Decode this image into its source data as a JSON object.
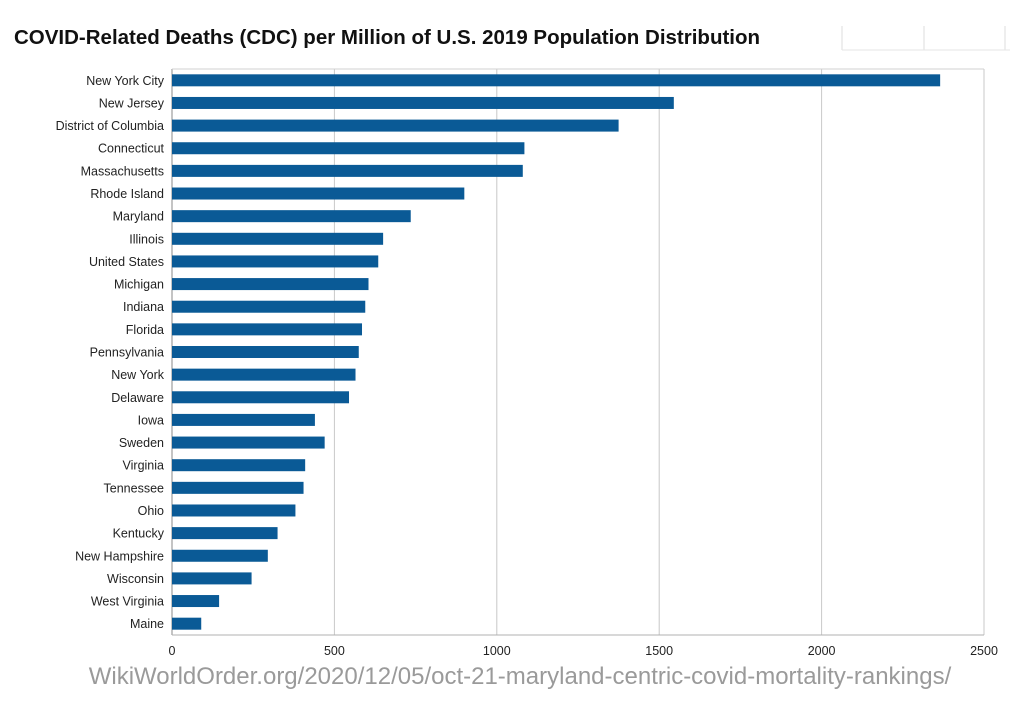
{
  "chart_data": {
    "type": "bar",
    "orientation": "horizontal",
    "title": "COVID-Related Deaths (CDC) per Million of U.S. 2019 Population Distribution",
    "categories": [
      "New York City",
      "New Jersey",
      "District of Columbia",
      "Connecticut",
      "Massachusetts",
      "Rhode Island",
      "Maryland",
      "Illinois",
      "United States",
      "Michigan",
      "Indiana",
      "Florida",
      "Pennsylvania",
      "New York",
      "Delaware",
      "Iowa",
      "Sweden",
      "Virginia",
      "Tennessee",
      "Ohio",
      "Kentucky",
      "New Hampshire",
      "Wisconsin",
      "West Virginia",
      "Maine"
    ],
    "values": [
      2365,
      1545,
      1375,
      1085,
      1080,
      900,
      735,
      650,
      635,
      605,
      595,
      585,
      575,
      565,
      545,
      440,
      470,
      410,
      405,
      380,
      325,
      295,
      245,
      145,
      90
    ],
    "xlim": [
      0,
      2500
    ],
    "xticks": [
      0,
      500,
      1000,
      1500,
      2000,
      2500
    ],
    "xlabel": "",
    "ylabel": "",
    "grid": true,
    "legend": "none",
    "bar_color": "#0a5a96"
  },
  "footer": {
    "source_url": "WikiWorldOrder.org/2020/12/05/oct-21-maryland-centric-covid-mortality-rankings/"
  }
}
